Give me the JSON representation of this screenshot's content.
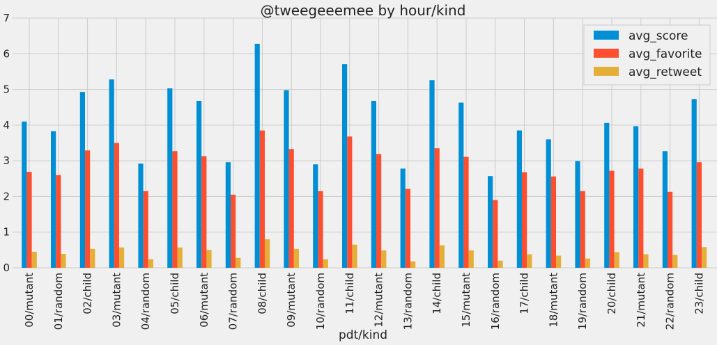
{
  "chart_data": {
    "type": "bar",
    "title": "@tweegeeemee by hour/kind",
    "xlabel": "pdt/kind",
    "ylabel": "",
    "ylim": [
      0,
      7
    ],
    "yticks": [
      0,
      1,
      2,
      3,
      4,
      5,
      6,
      7
    ],
    "grid": true,
    "legend_position": "top-right",
    "categories": [
      "00/mutant",
      "01/random",
      "02/child",
      "03/mutant",
      "04/random",
      "05/child",
      "06/mutant",
      "07/random",
      "08/child",
      "09/mutant",
      "10/random",
      "11/child",
      "12/mutant",
      "13/random",
      "14/child",
      "15/mutant",
      "16/random",
      "17/child",
      "18/mutant",
      "19/random",
      "20/child",
      "21/mutant",
      "22/random",
      "23/child"
    ],
    "series": [
      {
        "name": "avg_score",
        "color": "#008fd5",
        "values": [
          4.1,
          3.83,
          4.93,
          5.28,
          2.92,
          5.03,
          4.68,
          2.96,
          6.28,
          4.98,
          2.9,
          5.71,
          4.68,
          2.78,
          5.26,
          4.63,
          2.57,
          3.85,
          3.6,
          2.99,
          4.06,
          3.97,
          3.27,
          4.73
        ]
      },
      {
        "name": "avg_favorite",
        "color": "#fc4f30",
        "values": [
          2.69,
          2.6,
          3.29,
          3.5,
          2.15,
          3.27,
          3.13,
          2.05,
          3.85,
          3.33,
          2.15,
          3.68,
          3.19,
          2.21,
          3.35,
          3.11,
          1.9,
          2.68,
          2.56,
          2.15,
          2.72,
          2.78,
          2.13,
          2.96
        ]
      },
      {
        "name": "avg_retweet",
        "color": "#e5ae38",
        "values": [
          0.45,
          0.39,
          0.53,
          0.57,
          0.24,
          0.57,
          0.5,
          0.28,
          0.8,
          0.53,
          0.24,
          0.65,
          0.49,
          0.18,
          0.63,
          0.49,
          0.2,
          0.38,
          0.34,
          0.26,
          0.44,
          0.38,
          0.36,
          0.58
        ]
      }
    ]
  }
}
